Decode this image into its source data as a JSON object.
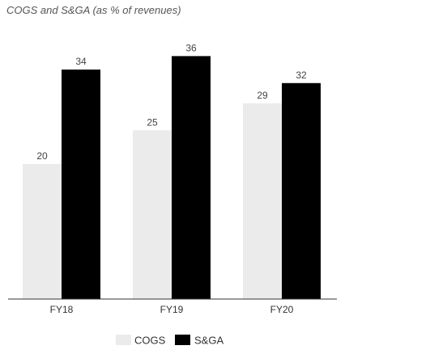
{
  "chart_data": {
    "type": "bar",
    "title": "COGS and S&GA (as % of revenues)",
    "xlabel": "",
    "ylabel": "",
    "categories": [
      "FY18",
      "FY19",
      "FY20"
    ],
    "series": [
      {
        "name": "COGS",
        "values": [
          20,
          25,
          29
        ],
        "color": "#ebebeb"
      },
      {
        "name": "S&GA",
        "values": [
          34,
          36,
          32
        ],
        "color": "#000000"
      }
    ],
    "ylim": [
      0,
      40
    ],
    "grid": false,
    "legend": "bottom-center",
    "data_labels": true
  }
}
